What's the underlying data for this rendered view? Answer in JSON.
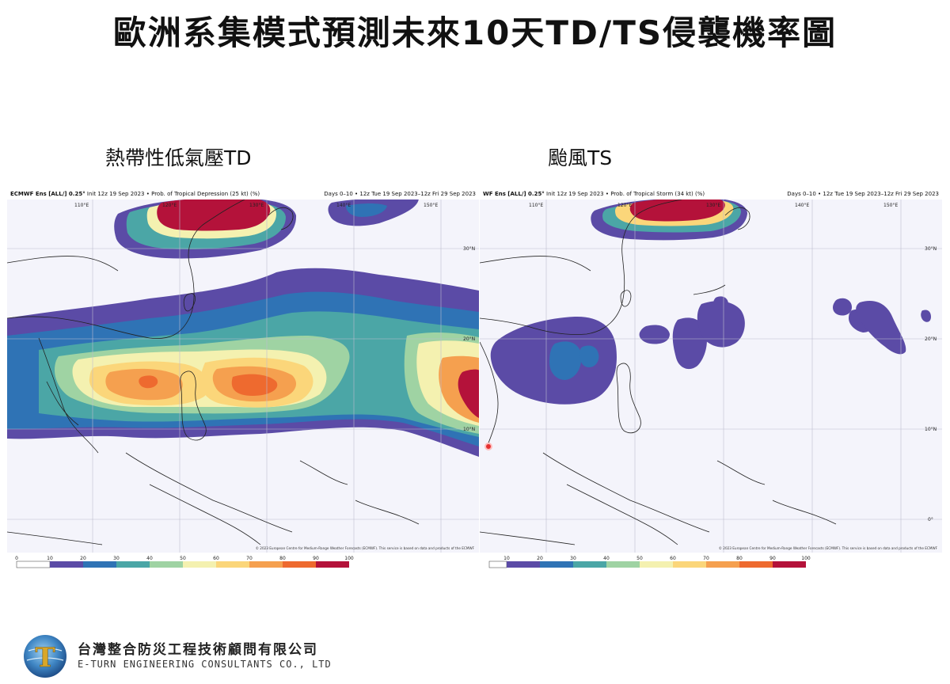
{
  "title": "歐洲系集模式預測未來10天TD/TS侵襲機率圖",
  "panels": [
    {
      "subtitle": "熱帶性低氣壓TD",
      "header_left_bold": "ECMWF Ens [ALL/] 0.25°",
      "header_left_rest": " Init 12z 19 Sep 2023 • Prob. of Tropical Depression (25 kt) (%)",
      "header_right": "Days 0–10 • 12z Tue 19 Sep 2023–12z Fri 29 Sep 2023",
      "lon_labels": [
        "110°E",
        "120°E",
        "130°E",
        "140°E",
        "150°E"
      ],
      "lat_labels": [
        "30°N",
        "20°N",
        "10°N"
      ],
      "copyright": "© 2023 European Centre for Medium-Range Weather Forecasts (ECMWF). This service is based on data and products of the ECMWF"
    },
    {
      "subtitle": "颱風TS",
      "header_left_bold": "WF Ens [ALL/] 0.25°",
      "header_left_rest": " Init 12z 19 Sep 2023 • Prob. of Tropical Storm (34 kt) (%)",
      "header_right": "Days 0–10 • 12z Tue 19 Sep 2023–12z Fri 29 Sep 2023",
      "lon_labels": [
        "110°E",
        "120°E",
        "130°E",
        "140°E",
        "150°E"
      ],
      "lat_labels": [
        "30°N",
        "20°N",
        "10°N",
        "0°"
      ],
      "copyright": "© 2023 European Centre for Medium-Range Weather Forecasts (ECMWF). This service is based on data and products of the ECMWF"
    }
  ],
  "colorbar": {
    "ticks": [
      "0",
      "10",
      "20",
      "30",
      "40",
      "50",
      "60",
      "70",
      "80",
      "90",
      "100"
    ],
    "colors": [
      "#ffffff",
      "#5b4ba6",
      "#2f73b5",
      "#4ba6a6",
      "#9fd3a3",
      "#f4f1b0",
      "#fbd67a",
      "#f5a04f",
      "#ee6a2f",
      "#b4123a"
    ]
  },
  "company": {
    "name_zh": "台灣整合防災工程技術顧問有限公司",
    "name_en": "E-TURN ENGINEERING CONSULTANTS CO., LTD",
    "logo_letter": "T"
  }
}
